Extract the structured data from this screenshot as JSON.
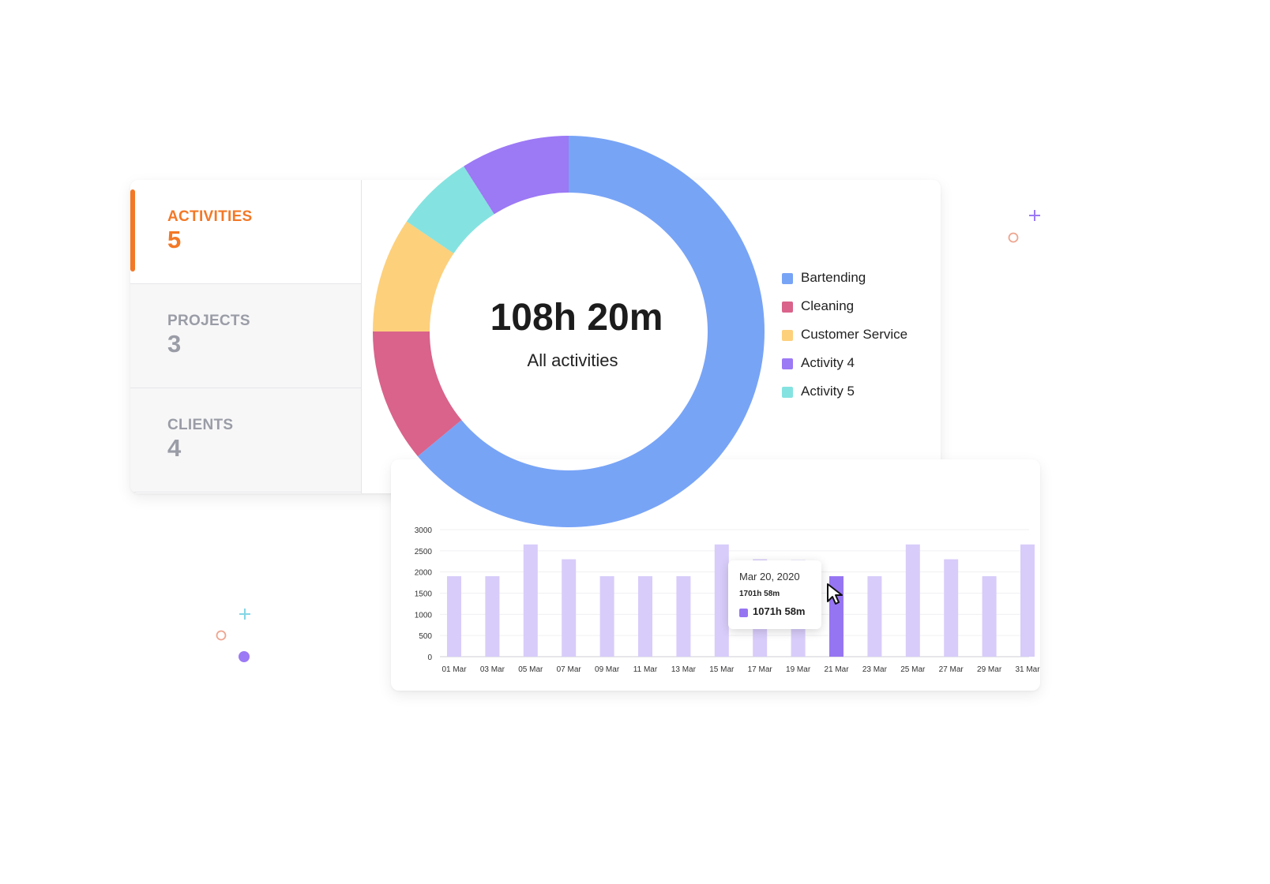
{
  "summary": {
    "tabs": [
      {
        "label": "ACTIVITIES",
        "value": "5",
        "active": true
      },
      {
        "label": "PROJECTS",
        "value": "3",
        "active": false
      },
      {
        "label": "CLIENTS",
        "value": "4",
        "active": false
      }
    ]
  },
  "chart_data": [
    {
      "type": "pie",
      "center_value": "108h 20m",
      "center_label": "All activities",
      "slices": [
        {
          "name": "Bartending",
          "value": 64,
          "color": "#78a4f6"
        },
        {
          "name": "Cleaning",
          "value": 11,
          "color": "#d9638a"
        },
        {
          "name": "Customer Service",
          "value": 9.5,
          "color": "#fdd07c"
        },
        {
          "name": "Activity 4",
          "value": 9,
          "color": "#9c79f5"
        },
        {
          "name": "Activity 5",
          "value": 6.5,
          "color": "#84e3e0"
        }
      ],
      "slice_order_clockwise_from_top": [
        "Bartending",
        "Cleaning",
        "Customer Service",
        "Activity 5",
        "Activity 4"
      ],
      "legend_position": "right"
    },
    {
      "type": "bar",
      "categories": [
        "01 Mar",
        "03 Mar",
        "05 Mar",
        "07 Mar",
        "09 Mar",
        "11 Mar",
        "13 Mar",
        "15 Mar",
        "17 Mar",
        "19 Mar",
        "21 Mar",
        "23 Mar",
        "25 Mar",
        "27 Mar",
        "29 Mar",
        "31 Mar"
      ],
      "values": [
        1900,
        1900,
        2650,
        2300,
        1900,
        1900,
        1900,
        2650,
        2300,
        2280,
        1900,
        1900,
        2650,
        2300,
        1900,
        2650
      ],
      "highlight_index": 10,
      "yticks": [
        0,
        500,
        1000,
        1500,
        2000,
        2500,
        3000
      ],
      "ylim": [
        0,
        3000
      ],
      "grid": true,
      "bar_color": "#d8ccfa",
      "highlight_color": "#9675f2",
      "tooltip": {
        "date": "Mar 20, 2020",
        "total": "1701h 58m",
        "value": "1071h 58m"
      }
    }
  ]
}
